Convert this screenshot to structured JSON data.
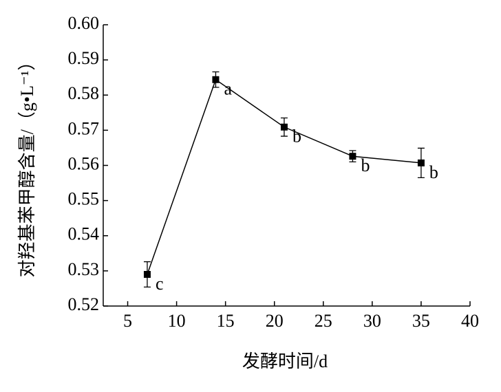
{
  "chart_data": {
    "type": "line",
    "x_label": "发酵时间/d",
    "y_label": "对羟基苯甲醇含量/（g•L⁻¹）",
    "x": [
      7,
      14,
      21,
      28,
      35
    ],
    "series": [
      {
        "color": "#000000",
        "values": [
          0.529,
          0.5844,
          0.5709,
          0.5626,
          0.5607
        ],
        "errors": [
          0.0036,
          0.0022,
          0.0026,
          0.0016,
          0.0042
        ],
        "point_labels": [
          "c",
          "a",
          "b",
          "b",
          "b"
        ]
      }
    ],
    "xlim": [
      2.5,
      40
    ],
    "xticks": [
      5,
      10,
      15,
      20,
      25,
      30,
      35,
      40
    ],
    "ylim": [
      0.52,
      0.6
    ],
    "yticks": [
      0.52,
      0.53,
      0.54,
      0.55,
      0.56,
      0.57,
      0.58,
      0.59,
      {
        "value": 0.6,
        "label": "0.60"
      }
    ],
    "grid": false
  }
}
